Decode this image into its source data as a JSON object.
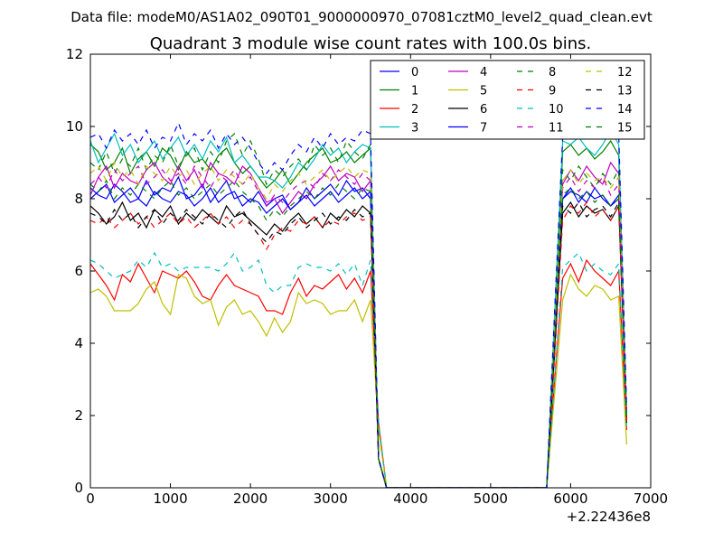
{
  "figure": {
    "suptitle": "Data file: modeM0/AS1A02_090T01_9000000970_07081cztM0_level2_quad_clean.evt"
  },
  "chart_data": {
    "type": "line",
    "title": "Quadrant 3 module wise count rates with 100.0s bins.",
    "xlabel": "",
    "ylabel": "",
    "x_offset_label": "+2.22436e8",
    "xlim": [
      0,
      7000
    ],
    "ylim": [
      0,
      12
    ],
    "x_ticks": [
      0,
      1000,
      2000,
      3000,
      4000,
      5000,
      6000,
      7000
    ],
    "x_tick_labels": [
      "0",
      "1000",
      "2000",
      "3000",
      "4000",
      "5000",
      "6000",
      "7000"
    ],
    "y_ticks": [
      0,
      2,
      4,
      6,
      8,
      10,
      12
    ],
    "y_tick_labels": [
      "0",
      "2",
      "4",
      "6",
      "8",
      "10",
      "12"
    ],
    "grid": false,
    "legend_position": "top-right",
    "legend_columns": 4,
    "x": [
      0,
      100,
      200,
      300,
      400,
      500,
      600,
      700,
      800,
      900,
      1000,
      1100,
      1200,
      1300,
      1400,
      1500,
      1600,
      1700,
      1800,
      1900,
      2000,
      2100,
      2200,
      2300,
      2400,
      2500,
      2600,
      2700,
      2800,
      2900,
      3000,
      3100,
      3200,
      3300,
      3400,
      3500,
      3600,
      3700,
      3800,
      3900,
      4000,
      4100,
      4200,
      4300,
      4400,
      4500,
      4600,
      4700,
      4800,
      4900,
      5000,
      5100,
      5200,
      5300,
      5400,
      5500,
      5600,
      5700,
      5800,
      5900,
      6000,
      6100,
      6200,
      6300,
      6400,
      6500,
      6600,
      6700
    ],
    "series": [
      {
        "name": "0",
        "color": "#0000ff",
        "dash": "solid",
        "values": [
          8.3,
          8.1,
          8.0,
          8.4,
          8.2,
          7.9,
          8.0,
          8.5,
          8.1,
          8.3,
          8.2,
          8.6,
          8.0,
          8.1,
          8.4,
          7.9,
          8.2,
          8.5,
          8.0,
          8.1,
          7.9,
          8.2,
          7.8,
          8.0,
          8.1,
          7.7,
          7.9,
          8.3,
          8.0,
          8.2,
          8.4,
          8.1,
          8.5,
          8.2,
          8.3,
          8.0,
          0.8,
          0,
          0,
          0,
          0,
          0,
          0,
          0,
          0,
          0,
          0,
          0,
          0,
          0,
          0,
          0,
          0,
          0,
          0,
          0,
          0,
          0,
          4.0,
          8.0,
          8.2,
          8.1,
          7.9,
          8.3,
          8.0,
          7.8,
          8.1,
          1.9
        ]
      },
      {
        "name": "1",
        "color": "#008000",
        "dash": "solid",
        "values": [
          9.5,
          9.3,
          8.8,
          9.0,
          9.4,
          8.7,
          9.1,
          9.3,
          8.9,
          9.4,
          9.2,
          8.8,
          9.3,
          9.0,
          9.1,
          8.8,
          9.2,
          9.4,
          9.0,
          8.7,
          8.9,
          8.6,
          8.3,
          8.5,
          8.8,
          8.4,
          8.7,
          9.0,
          9.2,
          9.4,
          9.0,
          9.1,
          9.3,
          9.0,
          9.2,
          9.4,
          0.8,
          0,
          0,
          0,
          0,
          0,
          0,
          0,
          0,
          0,
          0,
          0,
          0,
          0,
          0,
          0,
          0,
          0,
          0,
          0,
          0,
          0,
          4.4,
          9.3,
          9.5,
          9.2,
          9.4,
          9.1,
          9.3,
          9.6,
          9.2,
          2.0
        ]
      },
      {
        "name": "2",
        "color": "#ff0000",
        "dash": "solid",
        "values": [
          6.2,
          5.9,
          5.6,
          5.2,
          5.9,
          5.7,
          6.2,
          5.8,
          5.4,
          6.0,
          5.9,
          5.8,
          6.0,
          5.7,
          5.3,
          5.2,
          5.6,
          5.9,
          5.6,
          5.5,
          5.4,
          5.3,
          4.9,
          4.9,
          4.8,
          5.4,
          5.8,
          5.3,
          5.6,
          5.5,
          5.7,
          5.9,
          5.5,
          5.8,
          5.4,
          6.0,
          1.8,
          0,
          0,
          0,
          0,
          0,
          0,
          0,
          0,
          0,
          0,
          0,
          0,
          0,
          0,
          0,
          0,
          0,
          0,
          0,
          0,
          0,
          3.0,
          5.8,
          6.2,
          5.7,
          6.3,
          6.0,
          5.8,
          5.6,
          6.0,
          1.6
        ]
      },
      {
        "name": "3",
        "color": "#00bfbf",
        "dash": "solid",
        "values": [
          9.6,
          9.0,
          9.4,
          9.8,
          9.2,
          9.5,
          9.0,
          9.3,
          9.6,
          9.1,
          9.4,
          9.7,
          9.2,
          9.5,
          9.1,
          9.6,
          9.3,
          9.7,
          9.0,
          9.2,
          8.9,
          8.6,
          8.6,
          8.5,
          8.3,
          8.6,
          9.0,
          8.8,
          9.1,
          9.5,
          9.2,
          9.4,
          9.0,
          9.3,
          9.5,
          9.4,
          0.8,
          0,
          0,
          0,
          0,
          0,
          0,
          0,
          0,
          0,
          0,
          0,
          0,
          0,
          0,
          0,
          0,
          0,
          0,
          0,
          0,
          0,
          4.8,
          9.6,
          9.5,
          9.7,
          9.4,
          9.2,
          9.5,
          9.9,
          9.5,
          2.1
        ]
      },
      {
        "name": "4",
        "color": "#bf00bf",
        "dash": "solid",
        "values": [
          8.1,
          8.6,
          8.9,
          8.3,
          8.7,
          8.5,
          8.4,
          8.8,
          9.0,
          8.6,
          8.4,
          8.9,
          8.5,
          8.8,
          8.3,
          9.0,
          8.7,
          8.6,
          8.4,
          8.9,
          8.7,
          8.3,
          7.9,
          8.0,
          7.6,
          7.9,
          8.2,
          8.0,
          8.4,
          8.6,
          8.9,
          8.5,
          8.7,
          8.6,
          8.2,
          8.5,
          0.8,
          0,
          0,
          0,
          0,
          0,
          0,
          0,
          0,
          0,
          0,
          0,
          0,
          0,
          0,
          0,
          0,
          0,
          0,
          0,
          0,
          0,
          4.2,
          8.4,
          8.8,
          8.5,
          8.9,
          8.6,
          8.4,
          9.0,
          8.7,
          2.0
        ]
      },
      {
        "name": "5",
        "color": "#bfbf00",
        "dash": "solid",
        "values": [
          5.4,
          5.5,
          5.3,
          4.9,
          4.9,
          4.9,
          5.1,
          5.5,
          5.7,
          5.1,
          4.8,
          5.9,
          5.8,
          5.3,
          5.1,
          5.2,
          4.5,
          5.0,
          5.2,
          4.8,
          4.9,
          4.6,
          4.2,
          4.7,
          4.3,
          4.6,
          5.4,
          5.1,
          5.2,
          5.1,
          4.8,
          4.9,
          4.9,
          5.2,
          4.6,
          5.2,
          1.6,
          0,
          0,
          0,
          0,
          0,
          0,
          0,
          0,
          0,
          0,
          0,
          0,
          0,
          0,
          0,
          0,
          0,
          0,
          0,
          0,
          0,
          2.6,
          5.2,
          5.9,
          5.5,
          5.3,
          5.6,
          5.5,
          5.2,
          5.3,
          1.2
        ]
      },
      {
        "name": "6",
        "color": "#000000",
        "dash": "solid",
        "values": [
          7.8,
          7.6,
          7.3,
          7.5,
          7.9,
          7.4,
          7.6,
          7.2,
          7.7,
          7.5,
          7.8,
          7.3,
          7.6,
          7.4,
          7.7,
          7.5,
          7.3,
          7.8,
          7.5,
          7.6,
          7.4,
          7.2,
          7.0,
          7.3,
          7.1,
          7.4,
          7.6,
          7.3,
          7.5,
          7.2,
          7.6,
          7.4,
          7.7,
          7.5,
          7.8,
          7.6,
          0.8,
          0,
          0,
          0,
          0,
          0,
          0,
          0,
          0,
          0,
          0,
          0,
          0,
          0,
          0,
          0,
          0,
          0,
          0,
          0,
          0,
          0,
          3.8,
          7.6,
          7.9,
          7.5,
          7.8,
          7.6,
          7.7,
          7.4,
          7.8,
          1.8
        ]
      },
      {
        "name": "7",
        "color": "#0000ff",
        "dash": "solid",
        "values": [
          8.0,
          8.2,
          8.4,
          7.9,
          8.1,
          8.3,
          8.0,
          7.8,
          8.2,
          8.0,
          7.9,
          8.2,
          8.1,
          7.8,
          8.0,
          8.3,
          7.9,
          8.1,
          8.2,
          7.8,
          8.0,
          7.9,
          7.6,
          7.8,
          8.0,
          7.7,
          7.9,
          8.1,
          7.8,
          8.0,
          8.2,
          7.9,
          8.1,
          8.3,
          8.0,
          8.2,
          0.8,
          0,
          0,
          0,
          0,
          0,
          0,
          0,
          0,
          0,
          0,
          0,
          0,
          0,
          0,
          0,
          0,
          0,
          0,
          0,
          0,
          0,
          4.0,
          8.0,
          8.3,
          7.9,
          8.2,
          8.0,
          8.1,
          7.8,
          8.0,
          1.9
        ]
      },
      {
        "name": "8",
        "color": "#008000",
        "dash": "dashed",
        "values": [
          9.0,
          8.8,
          9.3,
          8.7,
          9.1,
          8.9,
          9.4,
          8.8,
          9.2,
          9.0,
          9.5,
          8.9,
          9.2,
          9.4,
          8.8,
          9.3,
          9.0,
          9.6,
          9.8,
          9.2,
          9.6,
          9.1,
          8.4,
          8.8,
          8.6,
          8.9,
          9.1,
          8.8,
          9.5,
          9.2,
          9.4,
          9.0,
          9.6,
          9.3,
          9.1,
          9.5,
          0.8,
          0,
          0,
          0,
          0,
          0,
          0,
          0,
          0,
          0,
          0,
          0,
          0,
          0,
          0,
          0,
          0,
          0,
          0,
          0,
          0,
          0,
          4.4,
          8.8,
          8.5,
          8.9,
          8.6,
          8.3,
          8.7,
          8.4,
          8.8,
          2.0
        ]
      },
      {
        "name": "9",
        "color": "#ff0000",
        "dash": "dashed",
        "values": [
          7.4,
          7.3,
          7.5,
          7.2,
          7.4,
          7.6,
          7.3,
          7.5,
          7.2,
          7.4,
          7.6,
          7.3,
          7.5,
          7.2,
          7.4,
          7.6,
          7.3,
          7.5,
          7.2,
          7.4,
          7.3,
          7.0,
          6.6,
          7.0,
          7.2,
          7.1,
          7.4,
          7.3,
          7.5,
          7.2,
          7.4,
          7.3,
          7.5,
          7.6,
          7.4,
          7.5,
          0.8,
          0,
          0,
          0,
          0,
          0,
          0,
          0,
          0,
          0,
          0,
          0,
          0,
          0,
          0,
          0,
          0,
          0,
          0,
          0,
          0,
          0,
          3.6,
          7.4,
          7.8,
          7.6,
          7.9,
          7.5,
          7.7,
          7.4,
          7.8,
          1.8
        ]
      },
      {
        "name": "10",
        "color": "#00bfbf",
        "dash": "dashed",
        "values": [
          6.3,
          6.2,
          6.0,
          5.8,
          5.9,
          6.0,
          6.3,
          6.1,
          6.5,
          6.1,
          6.2,
          6.0,
          6.1,
          6.1,
          6.1,
          6.1,
          6.0,
          6.2,
          6.5,
          6.0,
          6.1,
          6.3,
          5.6,
          5.4,
          5.6,
          5.6,
          6.1,
          6.2,
          6.1,
          6.1,
          6.0,
          6.2,
          5.9,
          6.2,
          5.6,
          6.3,
          1.8,
          0,
          0,
          0,
          0,
          0,
          0,
          0,
          0,
          0,
          0,
          0,
          0,
          0,
          0,
          0,
          0,
          0,
          0,
          0,
          0,
          0,
          3.0,
          6.1,
          6.3,
          6.5,
          6.0,
          6.2,
          6.0,
          5.9,
          6.2,
          1.6
        ]
      },
      {
        "name": "11",
        "color": "#bf00bf",
        "dash": "dashed",
        "values": [
          8.4,
          8.6,
          8.3,
          8.8,
          8.5,
          8.7,
          8.9,
          8.4,
          8.6,
          8.8,
          8.5,
          8.7,
          8.4,
          8.9,
          8.6,
          8.3,
          8.7,
          8.5,
          8.8,
          8.4,
          8.6,
          8.2,
          7.8,
          8.1,
          7.9,
          8.2,
          8.4,
          8.5,
          8.3,
          8.7,
          8.5,
          8.8,
          8.6,
          8.4,
          8.7,
          8.5,
          0.8,
          0,
          0,
          0,
          0,
          0,
          0,
          0,
          0,
          0,
          0,
          0,
          0,
          0,
          0,
          0,
          0,
          0,
          0,
          0,
          0,
          0,
          4.2,
          8.3,
          8.6,
          8.2,
          8.5,
          8.3,
          8.6,
          8.1,
          8.4,
          2.0
        ]
      },
      {
        "name": "12",
        "color": "#bfbf00",
        "dash": "dashed",
        "values": [
          8.7,
          8.9,
          8.5,
          9.0,
          8.6,
          8.8,
          8.4,
          8.9,
          8.7,
          8.5,
          8.9,
          8.6,
          8.8,
          8.4,
          8.7,
          8.9,
          8.5,
          8.8,
          8.6,
          8.4,
          8.7,
          8.3,
          8.0,
          8.4,
          8.2,
          8.5,
          8.7,
          8.4,
          8.6,
          8.8,
          8.5,
          8.7,
          8.9,
          8.6,
          8.8,
          8.7,
          0.8,
          0,
          0,
          0,
          0,
          0,
          0,
          0,
          0,
          0,
          0,
          0,
          0,
          0,
          0,
          0,
          0,
          0,
          0,
          0,
          0,
          0,
          4.3,
          8.5,
          8.8,
          8.4,
          8.7,
          8.5,
          8.6,
          8.3,
          8.6,
          2.0
        ]
      },
      {
        "name": "13",
        "color": "#000000",
        "dash": "dashed",
        "values": [
          7.6,
          7.5,
          7.3,
          7.7,
          7.4,
          7.6,
          7.2,
          7.5,
          7.7,
          7.3,
          7.6,
          7.4,
          7.7,
          7.5,
          7.3,
          7.6,
          7.4,
          7.2,
          7.5,
          7.7,
          7.3,
          7.0,
          6.8,
          7.1,
          7.0,
          7.3,
          7.5,
          7.2,
          7.4,
          7.6,
          7.3,
          7.5,
          7.4,
          7.7,
          7.5,
          7.6,
          0.8,
          0,
          0,
          0,
          0,
          0,
          0,
          0,
          0,
          0,
          0,
          0,
          0,
          0,
          0,
          0,
          0,
          0,
          0,
          0,
          0,
          0,
          3.8,
          7.8,
          7.6,
          7.9,
          7.5,
          7.7,
          7.8,
          7.5,
          7.9,
          1.8
        ]
      },
      {
        "name": "14",
        "color": "#0000ff",
        "dash": "dashed",
        "values": [
          9.7,
          9.8,
          9.4,
          9.9,
          9.6,
          9.8,
          9.5,
          9.9,
          9.4,
          9.7,
          9.6,
          10.1,
          9.5,
          9.8,
          9.6,
          9.9,
          9.4,
          9.8,
          9.5,
          9.7,
          9.4,
          9.0,
          8.7,
          9.0,
          8.8,
          9.2,
          9.5,
          9.3,
          9.7,
          9.4,
          9.8,
          9.5,
          9.7,
          9.6,
          9.9,
          9.8,
          0.8,
          0,
          0,
          0,
          0,
          0,
          0,
          0,
          0,
          0,
          0,
          0,
          0,
          0,
          0,
          0,
          0,
          0,
          0,
          0,
          0,
          0,
          4.9,
          9.7,
          10.0,
          9.8,
          10.1,
          9.6,
          9.9,
          10.2,
          9.8,
          2.2
        ]
      },
      {
        "name": "15",
        "color": "#008000",
        "dash": "dashed",
        "values": [
          8.4,
          8.2,
          8.5,
          8.0,
          8.3,
          8.1,
          8.4,
          8.2,
          8.0,
          8.3,
          8.5,
          8.1,
          8.3,
          8.0,
          8.2,
          8.4,
          8.1,
          8.3,
          8.5,
          8.2,
          8.0,
          7.8,
          7.4,
          7.7,
          7.5,
          7.8,
          8.0,
          8.2,
          8.0,
          8.3,
          8.1,
          8.4,
          8.2,
          8.0,
          8.3,
          8.2,
          0.8,
          0,
          0,
          0,
          0,
          0,
          0,
          0,
          0,
          0,
          0,
          0,
          0,
          0,
          0,
          0,
          0,
          0,
          0,
          0,
          0,
          0,
          4.0,
          8.1,
          8.3,
          8.0,
          8.2,
          7.9,
          8.1,
          7.8,
          8.0,
          1.9
        ]
      }
    ]
  }
}
